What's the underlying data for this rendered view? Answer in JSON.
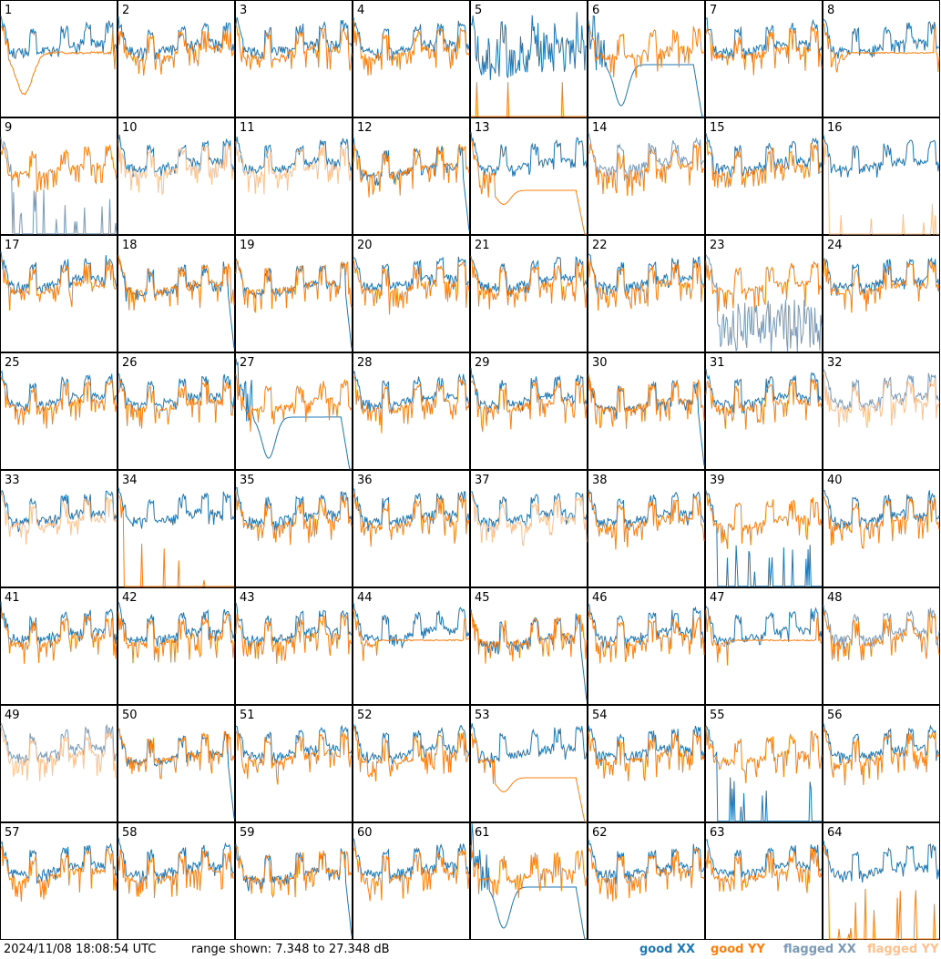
{
  "footer": {
    "timestamp": "2024/11/08 18:08:54 UTC",
    "range_text": "range shown: 7.348 to 27.348 dB"
  },
  "legend": [
    {
      "label": "good XX",
      "color": "#1f77b4"
    },
    {
      "label": "good YY",
      "color": "#ff7f0e"
    },
    {
      "label": "flagged XX",
      "color": "#7a9ab8"
    },
    {
      "label": "flagged YY",
      "color": "#ffc08c"
    }
  ],
  "chart_data": {
    "type": "line",
    "grid": "8x8 small multiples",
    "ylim_db": [
      7.348,
      27.348
    ],
    "series_styles": [
      "good XX",
      "good YY",
      "flagged XX",
      "flagged YY"
    ],
    "panels": [
      {
        "id": "1",
        "xx": "good",
        "yy": "good",
        "shape": "dip"
      },
      {
        "id": "2",
        "xx": "good",
        "yy": "good",
        "shape": "normal"
      },
      {
        "id": "3",
        "xx": "good",
        "yy": "good",
        "shape": "normal"
      },
      {
        "id": "4",
        "xx": "good",
        "yy": "good",
        "shape": "normal"
      },
      {
        "id": "5",
        "xx": "good",
        "yy": "good",
        "shape": "xx-noisy-yy-spikes"
      },
      {
        "id": "6",
        "xx": "good",
        "yy": "good",
        "shape": "xx-dip"
      },
      {
        "id": "7",
        "xx": "good",
        "yy": "good",
        "shape": "normal"
      },
      {
        "id": "8",
        "xx": "good",
        "yy": "good",
        "shape": "flat"
      },
      {
        "id": "9",
        "xx": "flagged",
        "yy": "good",
        "shape": "xx-low-spikes"
      },
      {
        "id": "10",
        "xx": "good",
        "yy": "flagged",
        "shape": "normal"
      },
      {
        "id": "11",
        "xx": "good",
        "yy": "flagged",
        "shape": "normal"
      },
      {
        "id": "12",
        "xx": "good",
        "yy": "good",
        "shape": "xx-drop"
      },
      {
        "id": "13",
        "xx": "good",
        "yy": "good",
        "shape": "yy-dip"
      },
      {
        "id": "14",
        "xx": "flagged",
        "yy": "good",
        "shape": "normal"
      },
      {
        "id": "15",
        "xx": "good",
        "yy": "good",
        "shape": "normal"
      },
      {
        "id": "16",
        "xx": "good",
        "yy": "flagged",
        "shape": "yy-low-spikes"
      },
      {
        "id": "17",
        "xx": "good",
        "yy": "good",
        "shape": "normal"
      },
      {
        "id": "18",
        "xx": "good",
        "yy": "good",
        "shape": "xx-drop"
      },
      {
        "id": "19",
        "xx": "good",
        "yy": "good",
        "shape": "xx-drop"
      },
      {
        "id": "20",
        "xx": "good",
        "yy": "good",
        "shape": "normal"
      },
      {
        "id": "21",
        "xx": "good",
        "yy": "good",
        "shape": "normal"
      },
      {
        "id": "22",
        "xx": "good",
        "yy": "good",
        "shape": "normal"
      },
      {
        "id": "23",
        "xx": "flagged",
        "yy": "good",
        "shape": "xx-noisy-low"
      },
      {
        "id": "24",
        "xx": "good",
        "yy": "good",
        "shape": "normal"
      },
      {
        "id": "25",
        "xx": "good",
        "yy": "good",
        "shape": "normal"
      },
      {
        "id": "26",
        "xx": "good",
        "yy": "good",
        "shape": "normal"
      },
      {
        "id": "27",
        "xx": "good",
        "yy": "good",
        "shape": "xx-dip"
      },
      {
        "id": "28",
        "xx": "good",
        "yy": "good",
        "shape": "normal"
      },
      {
        "id": "29",
        "xx": "good",
        "yy": "good",
        "shape": "normal"
      },
      {
        "id": "30",
        "xx": "good",
        "yy": "good",
        "shape": "xx-drop"
      },
      {
        "id": "31",
        "xx": "good",
        "yy": "good",
        "shape": "normal"
      },
      {
        "id": "32",
        "xx": "flagged",
        "yy": "flagged",
        "shape": "normal"
      },
      {
        "id": "33",
        "xx": "good",
        "yy": "flagged",
        "shape": "normal"
      },
      {
        "id": "34",
        "xx": "good",
        "yy": "good",
        "shape": "yy-low-spikes"
      },
      {
        "id": "35",
        "xx": "good",
        "yy": "good",
        "shape": "normal"
      },
      {
        "id": "36",
        "xx": "good",
        "yy": "good",
        "shape": "normal"
      },
      {
        "id": "37",
        "xx": "good",
        "yy": "flagged",
        "shape": "normal"
      },
      {
        "id": "38",
        "xx": "good",
        "yy": "good",
        "shape": "normal"
      },
      {
        "id": "39",
        "xx": "good",
        "yy": "good",
        "shape": "xx-low-spikes"
      },
      {
        "id": "40",
        "xx": "good",
        "yy": "good",
        "shape": "normal"
      },
      {
        "id": "41",
        "xx": "good",
        "yy": "good",
        "shape": "normal"
      },
      {
        "id": "42",
        "xx": "good",
        "yy": "good",
        "shape": "normal"
      },
      {
        "id": "43",
        "xx": "good",
        "yy": "good",
        "shape": "normal"
      },
      {
        "id": "44",
        "xx": "good",
        "yy": "good",
        "shape": "flat"
      },
      {
        "id": "45",
        "xx": "good",
        "yy": "good",
        "shape": "xx-drop"
      },
      {
        "id": "46",
        "xx": "good",
        "yy": "good",
        "shape": "normal"
      },
      {
        "id": "47",
        "xx": "good",
        "yy": "good",
        "shape": "flat"
      },
      {
        "id": "48",
        "xx": "flagged",
        "yy": "good",
        "shape": "normal"
      },
      {
        "id": "49",
        "xx": "flagged",
        "yy": "flagged",
        "shape": "normal"
      },
      {
        "id": "50",
        "xx": "good",
        "yy": "good",
        "shape": "xx-drop"
      },
      {
        "id": "51",
        "xx": "good",
        "yy": "good",
        "shape": "normal"
      },
      {
        "id": "52",
        "xx": "good",
        "yy": "good",
        "shape": "normal"
      },
      {
        "id": "53",
        "xx": "good",
        "yy": "good",
        "shape": "yy-dip"
      },
      {
        "id": "54",
        "xx": "good",
        "yy": "good",
        "shape": "normal"
      },
      {
        "id": "55",
        "xx": "good",
        "yy": "good",
        "shape": "xx-low-spikes"
      },
      {
        "id": "56",
        "xx": "good",
        "yy": "good",
        "shape": "normal"
      },
      {
        "id": "57",
        "xx": "good",
        "yy": "good",
        "shape": "normal"
      },
      {
        "id": "58",
        "xx": "good",
        "yy": "good",
        "shape": "normal"
      },
      {
        "id": "59",
        "xx": "good",
        "yy": "good",
        "shape": "xx-drop"
      },
      {
        "id": "60",
        "xx": "good",
        "yy": "good",
        "shape": "normal"
      },
      {
        "id": "61",
        "xx": "good",
        "yy": "good",
        "shape": "xx-dip"
      },
      {
        "id": "62",
        "xx": "good",
        "yy": "good",
        "shape": "normal"
      },
      {
        "id": "63",
        "xx": "good",
        "yy": "good",
        "shape": "normal"
      },
      {
        "id": "64",
        "xx": "good",
        "yy": "good",
        "shape": "yy-low-spikes"
      }
    ]
  }
}
